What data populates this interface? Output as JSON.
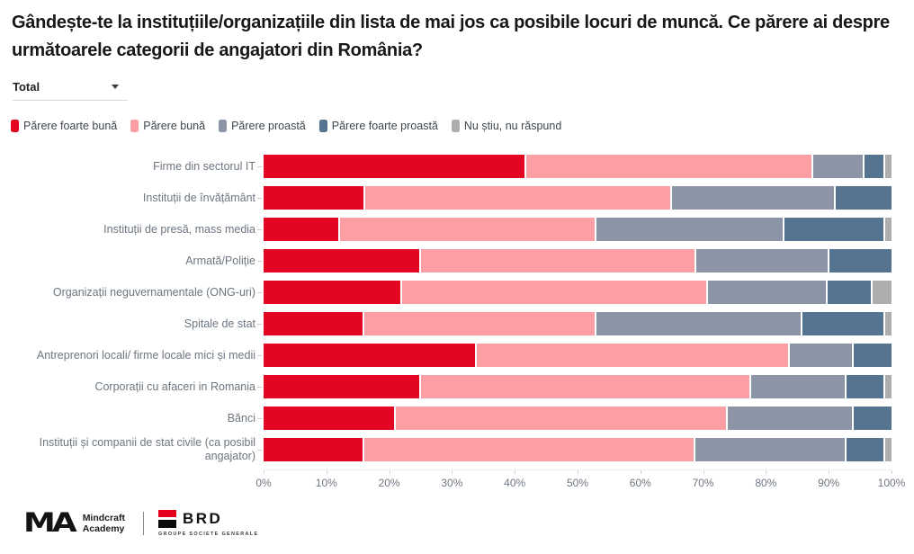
{
  "title": "Gândește-te la instituțiile/organizațiile din lista de mai jos ca posibile locuri de muncă. Ce părere ai despre următoarele categorii de angajatori din România?",
  "filter": {
    "value": "Total"
  },
  "chart_data": {
    "type": "bar",
    "orientation": "horizontal-stacked",
    "legend_position": "top",
    "grid": false,
    "categories": [
      "Firme din sectorul IT",
      "Instituții de învățământ",
      "Instituții de presă, mass media",
      "Armată/Poliție",
      "Organizații neguvernamentale (ONG-uri)",
      "Spitale de stat",
      "Antreprenori locali/ firme locale mici și medii",
      "Corporații cu afaceri in Romania",
      "Bănci",
      "Instituții și companii de stat civile (ca posibil angajator)"
    ],
    "series": [
      {
        "name": "Părere foarte bună",
        "color": "#e30521",
        "values": [
          42,
          16,
          12,
          25,
          22,
          16,
          34,
          25,
          21,
          16
        ]
      },
      {
        "name": "Părere bună",
        "color": "#fc9fa4",
        "values": [
          46,
          49,
          41,
          44,
          49,
          37,
          50,
          53,
          53,
          53
        ]
      },
      {
        "name": "Părere proastă",
        "color": "#8b95a6",
        "values": [
          8,
          26,
          30,
          21,
          19,
          33,
          10,
          15,
          20,
          24
        ]
      },
      {
        "name": "Părere foarte proastă",
        "color": "#55748f",
        "values": [
          3,
          9,
          16,
          10,
          7,
          13,
          6,
          6,
          6,
          6
        ]
      },
      {
        "name": "Nu știu, nu răspund",
        "color": "#adadad",
        "values": [
          1,
          0,
          1,
          0,
          3,
          1,
          0,
          1,
          0,
          1
        ]
      }
    ],
    "x_axis": {
      "min": 0,
      "max": 100,
      "ticks": [
        "0%",
        "10%",
        "20%",
        "30%",
        "40%",
        "50%",
        "60%",
        "70%",
        "80%",
        "90%",
        "100%"
      ]
    }
  },
  "footer": {
    "mindcraft": {
      "monogram": "MA",
      "line1": "Mindcraft",
      "line2": "Academy"
    },
    "brd": {
      "name": "BRD",
      "subtitle": "GROUPE SOCIETE GENERALE",
      "red": "#e2001a"
    }
  }
}
